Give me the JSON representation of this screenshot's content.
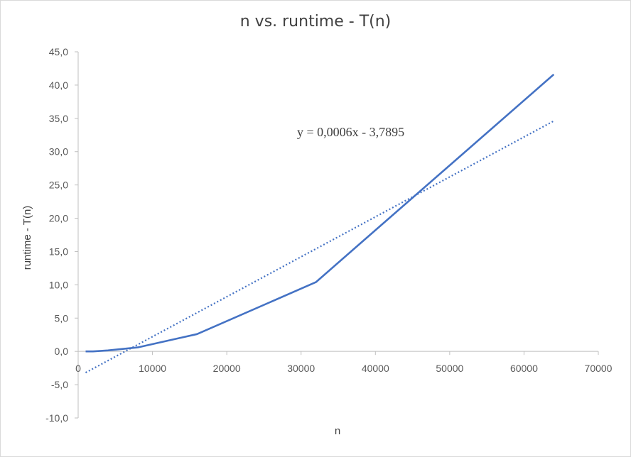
{
  "chart_data": {
    "type": "line",
    "title": "n vs. runtime - T(n)",
    "xlabel": "n",
    "ylabel": "runtime - T(n)",
    "xlim": [
      0,
      70000
    ],
    "ylim": [
      -10,
      45
    ],
    "x_ticks": [
      0,
      10000,
      20000,
      30000,
      40000,
      50000,
      60000,
      70000
    ],
    "x_tick_labels": [
      "0",
      "10000",
      "20000",
      "30000",
      "40000",
      "50000",
      "60000",
      "70000"
    ],
    "y_ticks": [
      -10,
      -5,
      0,
      5,
      10,
      15,
      20,
      25,
      30,
      35,
      40,
      45
    ],
    "y_tick_labels": [
      "-10,0",
      "-5,0",
      "0,0",
      "5,0",
      "10,0",
      "15,0",
      "20,0",
      "25,0",
      "30,0",
      "35,0",
      "40,0",
      "45,0"
    ],
    "grid": false,
    "series": [
      {
        "style": "solid",
        "color": "#4472C4",
        "x": [
          1000,
          2000,
          4000,
          8000,
          16000,
          32000,
          64000
        ],
        "y": [
          0.0,
          0.0,
          0.15,
          0.6,
          2.6,
          10.4,
          41.6
        ]
      }
    ],
    "trendline": {
      "style": "dotted",
      "color": "#4472C4",
      "slope": 0.0006,
      "intercept": -3.7895,
      "x_range": [
        1000,
        64000
      ],
      "equation_label": "y = 0,0006x - 3,7895"
    }
  }
}
